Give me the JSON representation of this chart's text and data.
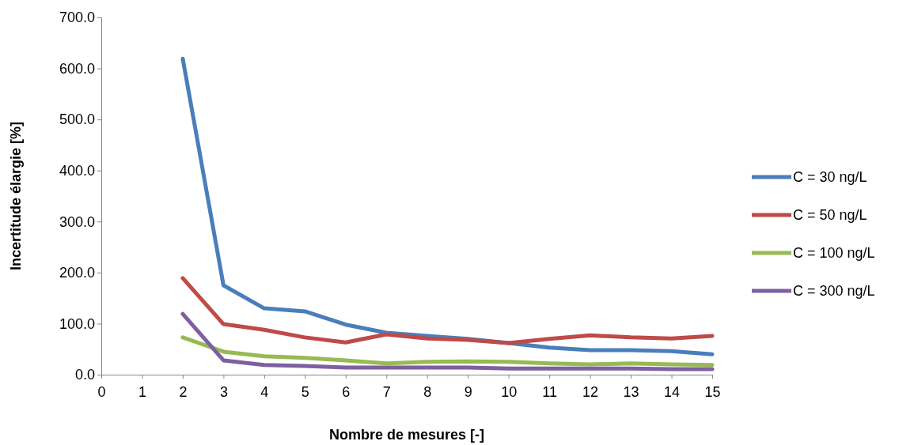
{
  "chart_data": {
    "type": "line",
    "xlabel": "Nombre de mesures [-]",
    "ylabel": "Incertitude élargie [%]",
    "x": [
      2,
      3,
      4,
      5,
      6,
      7,
      8,
      9,
      10,
      11,
      12,
      13,
      14,
      15
    ],
    "xlim": [
      0,
      15
    ],
    "xticks": [
      0,
      1,
      2,
      3,
      4,
      5,
      6,
      7,
      8,
      9,
      10,
      11,
      12,
      13,
      14,
      15
    ],
    "ylim": [
      0,
      700
    ],
    "yticks": [
      {
        "value": 0,
        "label": "0.0"
      },
      {
        "value": 100,
        "label": "100.0"
      },
      {
        "value": 200,
        "label": "200.0"
      },
      {
        "value": 300,
        "label": "300.0"
      },
      {
        "value": 400,
        "label": "400.0"
      },
      {
        "value": 500,
        "label": "500.0"
      },
      {
        "value": 600,
        "label": "600.0"
      },
      {
        "value": 700,
        "label": "700.0"
      }
    ],
    "grid": false,
    "legend": "right",
    "marker": "none",
    "line_style": "solid",
    "series": [
      {
        "name": "C = 30 ng/L",
        "color": "#4a7ebb",
        "values": [
          619,
          175,
          130,
          124,
          98,
          82,
          76,
          70,
          62,
          53,
          48,
          48,
          46,
          40
        ]
      },
      {
        "name": "C = 50 ng/L",
        "color": "#be4b48",
        "values": [
          189,
          99,
          88,
          73,
          63,
          79,
          71,
          68,
          62,
          70,
          77,
          73,
          71,
          76
        ]
      },
      {
        "name": "C = 100 ng/L",
        "color": "#98b954",
        "values": [
          73,
          45,
          36,
          33,
          28,
          22,
          25,
          26,
          25,
          22,
          20,
          22,
          20,
          19
        ]
      },
      {
        "name": "C = 300 ng/L",
        "color": "#7d60a0",
        "values": [
          119,
          28,
          19,
          17,
          14,
          14,
          14,
          14,
          12,
          12,
          12,
          12,
          11,
          11
        ]
      }
    ]
  }
}
